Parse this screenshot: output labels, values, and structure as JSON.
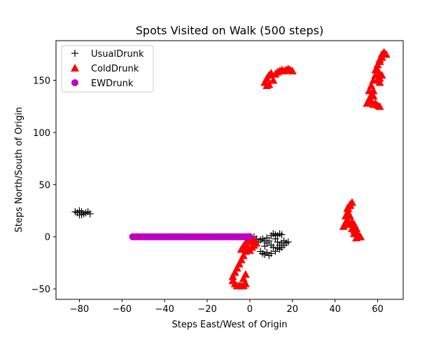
{
  "chart_data": {
    "type": "scatter",
    "title": "Spots Visited on Walk (500 steps)",
    "xlabel": "Steps East/West of Origin",
    "ylabel": "Steps North/South of Origin",
    "xlim": [
      -91,
      72
    ],
    "ylim": [
      -60,
      188
    ],
    "xticks": [
      -80,
      -60,
      -40,
      -20,
      0,
      20,
      40,
      60
    ],
    "xtick_labels": [
      "−80",
      "−60",
      "−40",
      "−20",
      "0",
      "20",
      "40",
      "60"
    ],
    "yticks": [
      -50,
      0,
      50,
      100,
      150
    ],
    "ytick_labels": [
      "−50",
      "0",
      "50",
      "100",
      "150"
    ],
    "grid": false,
    "legend_position": "top-left",
    "series": [
      {
        "name": "UsualDrunk",
        "marker": "plus",
        "color": "#000000",
        "points": [
          [
            -82,
            24
          ],
          [
            -81,
            23
          ],
          [
            -80,
            25
          ],
          [
            -79,
            21
          ],
          [
            -78,
            22
          ],
          [
            -77,
            23
          ],
          [
            -76,
            24
          ],
          [
            -75,
            22
          ],
          [
            -80,
            21
          ],
          [
            -79,
            24
          ],
          [
            0,
            -2
          ],
          [
            1,
            -4
          ],
          [
            2,
            -6
          ],
          [
            3,
            -8
          ],
          [
            4,
            -5
          ],
          [
            5,
            -3
          ],
          [
            6,
            -2
          ],
          [
            7,
            -4
          ],
          [
            8,
            -6
          ],
          [
            9,
            -4
          ],
          [
            8,
            -1
          ],
          [
            10,
            1
          ],
          [
            11,
            3
          ],
          [
            12,
            2
          ],
          [
            13,
            1
          ],
          [
            14,
            3
          ],
          [
            15,
            2
          ],
          [
            12,
            -2
          ],
          [
            13,
            -5
          ],
          [
            14,
            -8
          ],
          [
            15,
            -10
          ],
          [
            16,
            -8
          ],
          [
            17,
            -6
          ],
          [
            16,
            -4
          ],
          [
            15,
            -6
          ],
          [
            18,
            -5
          ],
          [
            14,
            -12
          ],
          [
            12,
            -14
          ],
          [
            10,
            -16
          ],
          [
            9,
            -18
          ],
          [
            8,
            -15
          ],
          [
            7,
            -17
          ],
          [
            6,
            -16
          ],
          [
            5,
            -14
          ],
          [
            13,
            -11
          ],
          [
            11,
            -10
          ],
          [
            10,
            -8
          ],
          [
            7,
            -9
          ],
          [
            3,
            -2
          ],
          [
            2,
            0
          ]
        ]
      },
      {
        "name": "ColdDrunk",
        "marker": "triangle-up",
        "color": "#ff0000",
        "points": [
          [
            0,
            0
          ],
          [
            -1,
            -3
          ],
          [
            -2,
            -6
          ],
          [
            -3,
            -9
          ],
          [
            -4,
            -12
          ],
          [
            -1,
            -10
          ],
          [
            0,
            -13
          ],
          [
            1,
            -10
          ],
          [
            2,
            -8
          ],
          [
            1,
            -5
          ],
          [
            2,
            -3
          ],
          [
            3,
            -6
          ],
          [
            -2,
            -14
          ],
          [
            -3,
            -18
          ],
          [
            -4,
            -22
          ],
          [
            -5,
            -26
          ],
          [
            -6,
            -30
          ],
          [
            -7,
            -34
          ],
          [
            -8,
            -38
          ],
          [
            -8,
            -42
          ],
          [
            -7,
            -45
          ],
          [
            -6,
            -47
          ],
          [
            -5,
            -47
          ],
          [
            -4,
            -47
          ],
          [
            -3,
            -47
          ],
          [
            -2,
            -45
          ],
          [
            -3,
            -40
          ],
          [
            -2,
            -36
          ],
          [
            7,
            148
          ],
          [
            8,
            152
          ],
          [
            9,
            155
          ],
          [
            10,
            157
          ],
          [
            9,
            146
          ],
          [
            8,
            145
          ],
          [
            11,
            150
          ],
          [
            12,
            156
          ],
          [
            13,
            158
          ],
          [
            14,
            159
          ],
          [
            15,
            160
          ],
          [
            16,
            159
          ],
          [
            17,
            160
          ],
          [
            18,
            161
          ],
          [
            19,
            160
          ],
          [
            20,
            159
          ],
          [
            55,
            128
          ],
          [
            56,
            132
          ],
          [
            57,
            136
          ],
          [
            56,
            140
          ],
          [
            57,
            145
          ],
          [
            58,
            150
          ],
          [
            59,
            155
          ],
          [
            59,
            160
          ],
          [
            60,
            165
          ],
          [
            61,
            170
          ],
          [
            62,
            175
          ],
          [
            63,
            177
          ],
          [
            64,
            175
          ],
          [
            62,
            172
          ],
          [
            61,
            168
          ],
          [
            60,
            160
          ],
          [
            59,
            155
          ],
          [
            60,
            150
          ],
          [
            61,
            148
          ],
          [
            61,
            152
          ],
          [
            62,
            155
          ],
          [
            61,
            156
          ],
          [
            57,
            130
          ],
          [
            58,
            127
          ],
          [
            60,
            126
          ],
          [
            61,
            125
          ],
          [
            59,
            128
          ],
          [
            58,
            135
          ],
          [
            58,
            140
          ],
          [
            44,
            10
          ],
          [
            45,
            12
          ],
          [
            45,
            14
          ],
          [
            46,
            16
          ],
          [
            45,
            20
          ],
          [
            46,
            24
          ],
          [
            46,
            28
          ],
          [
            47,
            31
          ],
          [
            48,
            33
          ],
          [
            47,
            30
          ],
          [
            46,
            27
          ],
          [
            45,
            13
          ],
          [
            47,
            12
          ],
          [
            48,
            8
          ],
          [
            49,
            6
          ],
          [
            50,
            4
          ],
          [
            51,
            2
          ],
          [
            52,
            0
          ],
          [
            50,
            -1
          ],
          [
            49,
            3
          ],
          [
            50,
            8
          ],
          [
            49,
            12
          ],
          [
            48,
            14
          ],
          [
            46,
            16
          ],
          [
            47,
            20
          ]
        ]
      },
      {
        "name": "EWDrunk",
        "marker": "circle",
        "color": "#bf00bf",
        "points": [
          [
            -55,
            0
          ],
          [
            -54,
            0
          ],
          [
            -53,
            0
          ],
          [
            -52,
            0
          ],
          [
            -51,
            0
          ],
          [
            -50,
            0
          ],
          [
            -49,
            0
          ],
          [
            -48,
            0
          ],
          [
            -47,
            0
          ],
          [
            -46,
            0
          ],
          [
            -45,
            0
          ],
          [
            -44,
            0
          ],
          [
            -43,
            0
          ],
          [
            -42,
            0
          ],
          [
            -41,
            0
          ],
          [
            -40,
            0
          ],
          [
            -39,
            0
          ],
          [
            -38,
            0
          ],
          [
            -37,
            0
          ],
          [
            -36,
            0
          ],
          [
            -35,
            0
          ],
          [
            -34,
            0
          ],
          [
            -33,
            0
          ],
          [
            -32,
            0
          ],
          [
            -31,
            0
          ],
          [
            -30,
            0
          ],
          [
            -29,
            0
          ],
          [
            -28,
            0
          ],
          [
            -27,
            0
          ],
          [
            -26,
            0
          ],
          [
            -25,
            0
          ],
          [
            -24,
            0
          ],
          [
            -23,
            0
          ],
          [
            -22,
            0
          ],
          [
            -21,
            0
          ],
          [
            -20,
            0
          ],
          [
            -19,
            0
          ],
          [
            -18,
            0
          ],
          [
            -17,
            0
          ],
          [
            -16,
            0
          ],
          [
            -15,
            0
          ],
          [
            -14,
            0
          ],
          [
            -13,
            0
          ],
          [
            -12,
            0
          ],
          [
            -11,
            0
          ],
          [
            -10,
            0
          ],
          [
            -9,
            0
          ],
          [
            -8,
            0
          ],
          [
            -7,
            0
          ],
          [
            -6,
            0
          ],
          [
            -5,
            0
          ],
          [
            -4,
            0
          ],
          [
            -3,
            0
          ],
          [
            -2,
            0
          ],
          [
            -1,
            0
          ],
          [
            0,
            0
          ]
        ]
      }
    ]
  }
}
